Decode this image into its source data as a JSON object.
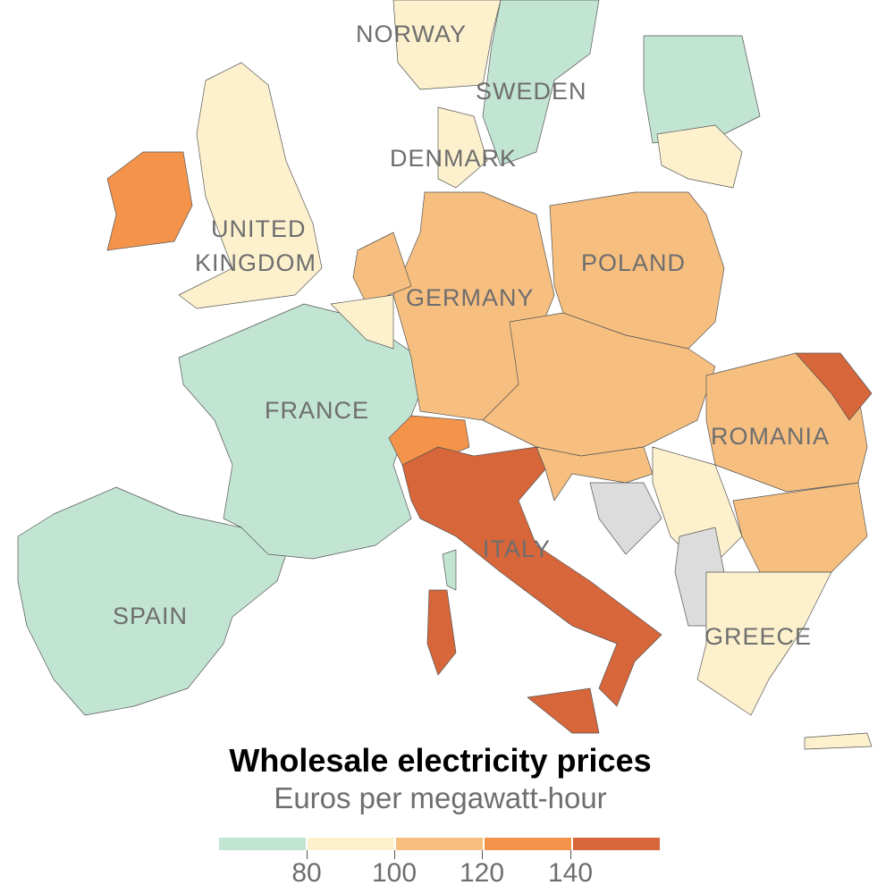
{
  "title": "Wholesale electricity prices",
  "subtitle": "Euros per megawatt-hour",
  "legend": {
    "bins": [
      {
        "range": "< 80",
        "color": "#c2e4d2"
      },
      {
        "range": "80-100",
        "color": "#fdf1cd"
      },
      {
        "range": "100-120",
        "color": "#f6bf80"
      },
      {
        "range": "120-140",
        "color": "#f4934a"
      },
      {
        "range": "> 140",
        "color": "#d7663a"
      }
    ],
    "ticks": [
      "80",
      "100",
      "120",
      "140"
    ],
    "no_data_color": "#dcdcdc"
  },
  "labels": {
    "norway": "NORWAY",
    "sweden": "SWEDEN",
    "denmark": "DENMARK",
    "uk_1": "UNITED",
    "uk_2": "KINGDOM",
    "poland": "POLAND",
    "germany": "GERMANY",
    "france": "FRANCE",
    "romania": "ROMANIA",
    "italy": "ITALY",
    "spain": "SPAIN",
    "greece": "GREECE"
  },
  "country_bins": {
    "spain": "< 80",
    "portugal": "< 80",
    "france": "< 80",
    "sweden": "< 80",
    "finland": "< 80",
    "norway": "80-100",
    "united_kingdom": "80-100",
    "denmark": "80-100",
    "baltics": "80-100",
    "belgium": "80-100",
    "serbia": "80-100",
    "greece": "80-100",
    "germany": "100-120",
    "poland": "100-120",
    "netherlands": "100-120",
    "central_europe": "100-120",
    "romania": "100-120",
    "bulgaria": "100-120",
    "croatia_slovenia": "100-120",
    "ireland": "120-140",
    "switzerland": "120-140",
    "italy": "> 140",
    "moldova": "> 140"
  }
}
